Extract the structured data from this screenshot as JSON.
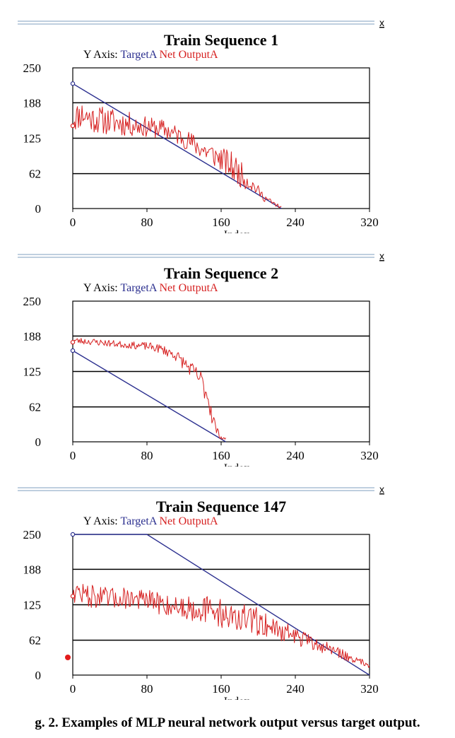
{
  "colors": {
    "target": "#2b2f8f",
    "output": "#d62020",
    "grid": "#000000"
  },
  "close_glyph": "x",
  "legend": {
    "prefix": "Y Axis:",
    "target": "TargetA",
    "output": "Net OutputA"
  },
  "chart_data": [
    {
      "type": "line",
      "title": "Train Sequence 1",
      "xlabel": "Index",
      "ylabel": "",
      "xlim": [
        0,
        320
      ],
      "ylim": [
        0,
        250
      ],
      "xticks": [
        0,
        80,
        160,
        240,
        320
      ],
      "yticks": [
        0,
        62,
        125,
        188,
        250
      ],
      "series": [
        {
          "name": "TargetA",
          "x": [
            0,
            225
          ],
          "y": [
            222,
            0
          ]
        },
        {
          "name": "Net OutputA",
          "noisy": true,
          "seed": 11,
          "length": 225,
          "x": [
            0,
            10,
            20,
            40,
            60,
            80,
            100,
            120,
            140,
            160,
            175,
            185,
            195,
            205,
            215,
            225
          ],
          "y": [
            160,
            168,
            160,
            155,
            150,
            145,
            140,
            125,
            105,
            88,
            70,
            55,
            40,
            22,
            10,
            2
          ],
          "noise": [
            25,
            25,
            25,
            25,
            22,
            18,
            18,
            18,
            20,
            22,
            28,
            20,
            12,
            8,
            5,
            2
          ]
        }
      ]
    },
    {
      "type": "line",
      "title": "Train Sequence 2",
      "xlabel": "Index",
      "ylabel": "",
      "xlim": [
        0,
        320
      ],
      "ylim": [
        0,
        250
      ],
      "xticks": [
        0,
        80,
        160,
        240,
        320
      ],
      "yticks": [
        0,
        62,
        125,
        188,
        250
      ],
      "series": [
        {
          "name": "TargetA",
          "x": [
            0,
            165
          ],
          "y": [
            162,
            0
          ]
        },
        {
          "name": "Net OutputA",
          "noisy": true,
          "seed": 23,
          "length": 165,
          "x": [
            0,
            20,
            40,
            60,
            80,
            95,
            110,
            120,
            130,
            138,
            145,
            150,
            155,
            160,
            165
          ],
          "y": [
            180,
            178,
            175,
            172,
            170,
            165,
            155,
            140,
            125,
            110,
            85,
            50,
            20,
            8,
            5
          ],
          "noise": [
            6,
            6,
            6,
            6,
            7,
            8,
            10,
            12,
            14,
            18,
            22,
            18,
            8,
            4,
            2
          ]
        }
      ]
    },
    {
      "type": "line",
      "title": "Train Sequence 147",
      "xlabel": "Index",
      "ylabel": "",
      "xlim": [
        0,
        320
      ],
      "ylim": [
        0,
        250
      ],
      "xticks": [
        0,
        80,
        160,
        240,
        320
      ],
      "yticks": [
        0,
        62,
        125,
        188,
        250
      ],
      "series": [
        {
          "name": "TargetA",
          "x": [
            0,
            80,
            320
          ],
          "y": [
            250,
            250,
            0
          ]
        },
        {
          "name": "Net OutputA",
          "noisy": true,
          "seed": 47,
          "length": 320,
          "x": [
            0,
            20,
            40,
            60,
            80,
            100,
            120,
            140,
            160,
            180,
            200,
            220,
            240,
            260,
            280,
            300,
            320
          ],
          "y": [
            150,
            140,
            135,
            138,
            132,
            125,
            120,
            118,
            110,
            100,
            95,
            82,
            70,
            55,
            45,
            30,
            18
          ],
          "noise": [
            20,
            20,
            20,
            20,
            20,
            20,
            22,
            24,
            26,
            28,
            26,
            20,
            16,
            12,
            10,
            8,
            5
          ]
        }
      ]
    }
  ],
  "caption": "g. 2. Examples of MLP neural network output versus target output."
}
